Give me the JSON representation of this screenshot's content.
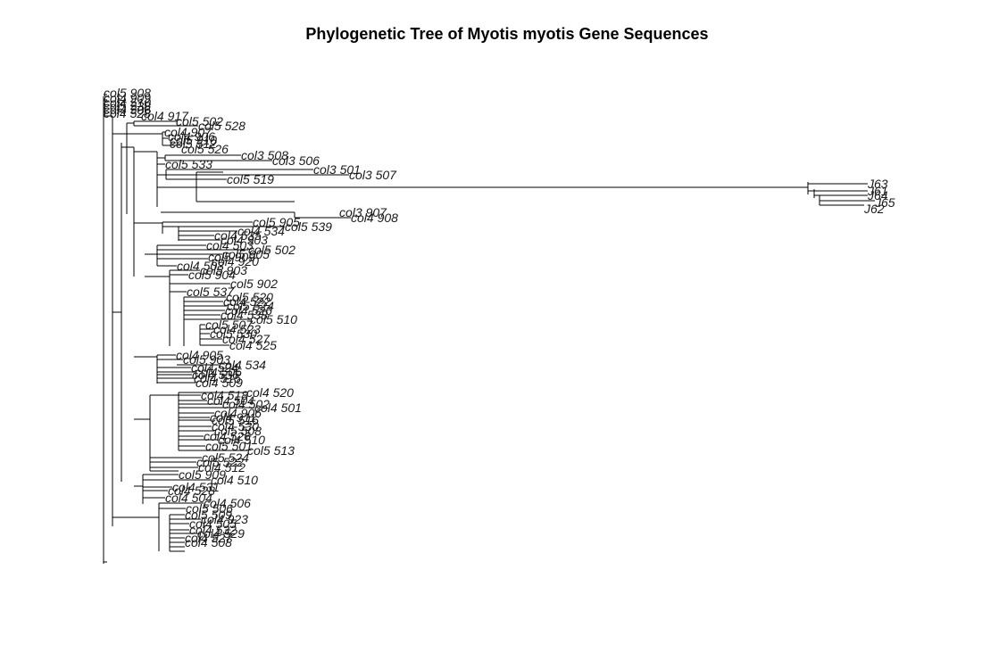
{
  "title": "Phylogenetic Tree of Myotis myotis Gene Sequences",
  "tips": [
    "col5 908",
    "col4 909",
    "col4 510",
    "col5 538",
    "col4 506",
    "col4 528",
    "col4 917",
    "col5 502",
    "col5 528",
    "col4 907",
    "col4 906",
    "col5 910",
    "col5 512",
    "col5 526",
    "col3 508",
    "col3 506",
    "col5 533",
    "col3 501",
    "col3 507",
    "col5 519",
    "J63",
    "J61",
    "J64",
    "J65",
    "J62",
    "col3 907",
    "col4 908",
    "col5 905",
    "col5 539",
    "col4 534",
    "col4 535",
    "col4 903",
    "col4 503",
    "col5 502",
    "col5 905",
    "col5 909",
    "col4 920",
    "col4 503",
    "col5 903",
    "col5 904",
    "col5 902",
    "col5 537",
    "col5 520",
    "col4 522",
    "col5 524",
    "col4 526",
    "col4 538",
    "col5 510",
    "col5 507",
    "col4 523",
    "col5 530",
    "col4 527",
    "col4 525",
    "col4 905",
    "col5 903",
    "col4 524",
    "col4 534",
    "col4 506",
    "col4 536",
    "col4 515",
    "col4 509",
    "col4 518",
    "col4 520",
    "col4 504",
    "col4 502",
    "col4 501",
    "col4 906",
    "col4 911",
    "col5 516",
    "col4 530",
    "col5 508",
    "col4 526",
    "col4 510",
    "col5 501",
    "col5 513",
    "col5 524",
    "col5 522",
    "col4 512",
    "col5 909",
    "col4 510",
    "col4 531",
    "col4 528",
    "col4 504",
    "col4 506",
    "col5 506",
    "col5 509",
    "col4 923",
    "col4 505",
    "col4 532",
    "col4 529",
    "col4 527",
    "col4 508"
  ]
}
